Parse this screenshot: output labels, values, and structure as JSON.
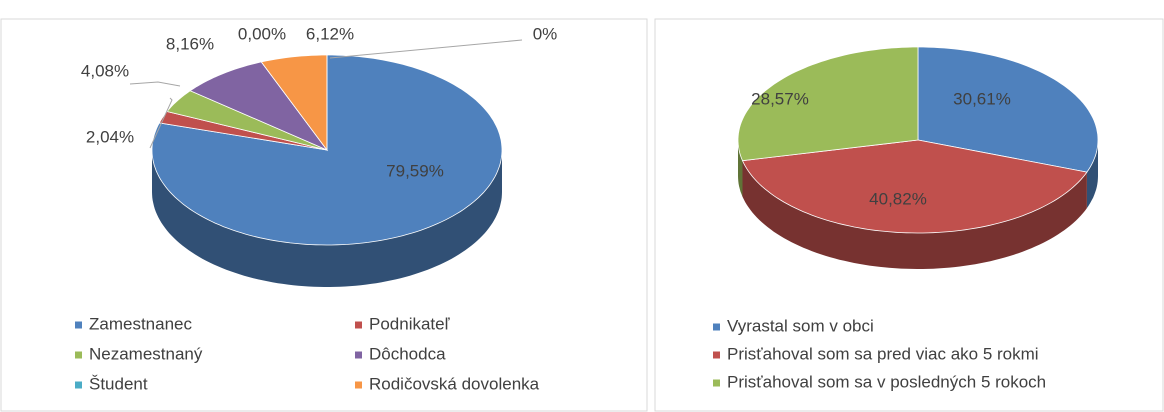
{
  "chart_data": [
    {
      "type": "pie",
      "categories": [
        "Zamestnanec",
        "Podnikateľ",
        "Nezamestnaný",
        "Dôchodca",
        "Študent",
        "Rodičovská dovolenka",
        null
      ],
      "values": [
        79.59,
        2.04,
        4.08,
        8.16,
        0,
        6.12,
        0
      ],
      "value_labels": [
        "79,59%",
        "2,04%",
        "4,08%",
        "8,16%",
        "0,00%",
        "6,12%",
        "0%"
      ],
      "colors": [
        "#4f81bd",
        "#c0504d",
        "#9bbb59",
        "#8064a2",
        "#4bacc6",
        "#f79646",
        "#2c4d75"
      ],
      "legend": "bottom"
    },
    {
      "type": "pie",
      "categories": [
        "Vyrastal som v obci",
        "Prisťahoval som sa pred viac ako 5 rokmi",
        "Prisťahoval som sa v posledných 5 rokoch"
      ],
      "values": [
        30.61,
        40.82,
        28.57
      ],
      "value_labels": [
        "30,61%",
        "40,82%",
        "28,57%"
      ],
      "colors": [
        "#4f81bd",
        "#c0504d",
        "#9bbb59"
      ],
      "legend": "bottom"
    }
  ]
}
